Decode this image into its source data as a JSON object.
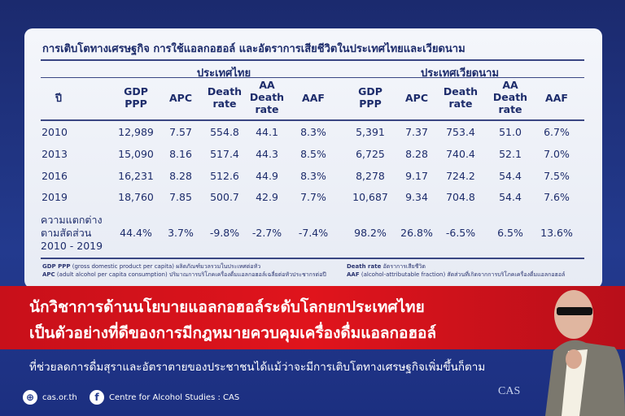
{
  "table": {
    "title": "การเติบโตทางเศรษฐกิจ การใช้แอลกอฮอล์ และอัตราการเสียชีวิตในประเทศไทยและเวียดนาม",
    "group_thai": "ประเทศไทย",
    "group_vietnam": "ประเทศเวียดนาม",
    "year_header": "ปี",
    "columns": [
      "GDP PPP",
      "APC",
      "Death rate",
      "AA Death rate",
      "AAF"
    ],
    "rows": [
      {
        "year": "2010",
        "thai": [
          "12,989",
          "7.57",
          "554.8",
          "44.1",
          "8.3%"
        ],
        "vn": [
          "5,391",
          "7.37",
          "753.4",
          "51.0",
          "6.7%"
        ]
      },
      {
        "year": "2013",
        "thai": [
          "15,090",
          "8.16",
          "517.4",
          "44.3",
          "8.5%"
        ],
        "vn": [
          "6,725",
          "8.28",
          "740.4",
          "52.1",
          "7.0%"
        ]
      },
      {
        "year": "2016",
        "thai": [
          "16,231",
          "8.28",
          "512.6",
          "44.9",
          "8.3%"
        ],
        "vn": [
          "8,278",
          "9.17",
          "724.2",
          "54.4",
          "7.5%"
        ]
      },
      {
        "year": "2019",
        "thai": [
          "18,760",
          "7.85",
          "500.7",
          "42.9",
          "7.7%"
        ],
        "vn": [
          "10,687",
          "9.34",
          "704.8",
          "54.4",
          "7.6%"
        ]
      }
    ],
    "diff_row": {
      "label_lines": [
        "ความแตกต่าง",
        "ตามสัดส่วน",
        "2010 - 2019"
      ],
      "thai": [
        "44.4%",
        "3.7%",
        "-9.8%",
        "-2.7%",
        "-7.4%"
      ],
      "vn": [
        "98.2%",
        "26.8%",
        "-6.5%",
        "6.5%",
        "13.6%"
      ]
    }
  },
  "footnotes": {
    "gdp_term": "GDP PPP",
    "gdp_def": "(gross domestic product per capita) ผลิตภัณฑ์มวลรวมในประเทศต่อหัว",
    "apc_term": "APC",
    "apc_def": "(adult alcohol per capita consumption) ปริมาณการบริโภคเครื่องดื่มแอลกอฮอล์เฉลี่ยต่อหัวประชากรต่อปี",
    "death_term": "Death rate",
    "death_def": "อัตราการเสียชีวิต",
    "aaf_term": "AAF",
    "aaf_def": "(alcohol-attributable fraction) สัดส่วนที่เกิดจากการบริโภคเครื่องดื่มแอลกอฮอล์"
  },
  "headline": {
    "line1": "นักวิชาการด้านนโยบายแอลกอฮอล์ระดับโลกยกประเทศไทย",
    "line2": "เป็นตัวอย่างที่ดีของการมีกฎหมายควบคุมเครื่องดื่มแอลกอฮอล์",
    "sub": "ที่ช่วยลดการดื่มสุราและอัตราตายของประชาชนได้แม้ว่าจะมีการเติบโตทางเศรษฐกิจเพิ่มขึ้นก็ตาม"
  },
  "footer": {
    "website": "cas.or.th",
    "facebook": "Centre for Alcohol Studies : CAS",
    "logo": "CAS"
  },
  "colors": {
    "navy": "#1d2c6b",
    "red": "#d9141c",
    "blue_bg": "#233a8e"
  }
}
